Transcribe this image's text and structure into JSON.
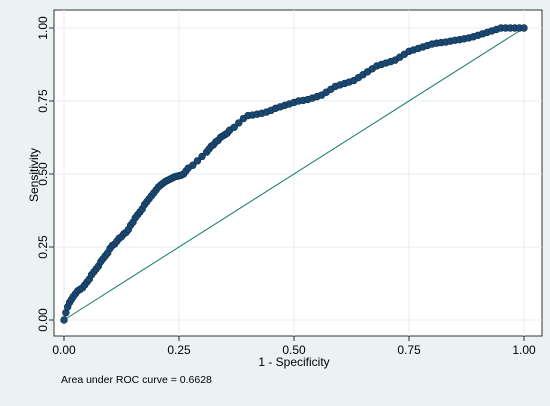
{
  "chart_data": {
    "type": "scatter",
    "title": "",
    "xlabel": "1 - Specificity",
    "ylabel": "Sensitivity",
    "xlim": [
      0,
      1
    ],
    "ylim": [
      0,
      1
    ],
    "xticks": [
      "0.00",
      "0.25",
      "0.50",
      "0.75",
      "1.00"
    ],
    "yticks": [
      "0.00",
      "0.25",
      "0.50",
      "0.75",
      "1.00"
    ],
    "grid": true,
    "note": "Area under ROC curve = 0.6628",
    "reference_line": [
      [
        0,
        0
      ],
      [
        1,
        1
      ]
    ],
    "colors": {
      "points": "#1a4870",
      "reference": "#1a7a6e",
      "background": "#eaf2f3"
    },
    "series": [
      {
        "x": [
          0.0,
          0.004,
          0.008,
          0.012,
          0.016,
          0.02,
          0.025,
          0.03,
          0.035,
          0.04,
          0.045,
          0.05,
          0.055,
          0.06,
          0.065,
          0.07,
          0.075,
          0.08,
          0.085,
          0.09,
          0.095,
          0.1,
          0.105,
          0.11,
          0.115,
          0.12,
          0.125,
          0.13,
          0.135,
          0.14,
          0.145,
          0.15,
          0.155,
          0.16,
          0.165,
          0.17,
          0.175,
          0.18,
          0.185,
          0.19,
          0.195,
          0.2,
          0.205,
          0.21,
          0.215,
          0.22,
          0.225,
          0.23,
          0.235,
          0.24,
          0.245,
          0.25,
          0.255,
          0.26,
          0.265,
          0.27,
          0.28,
          0.29,
          0.3,
          0.31,
          0.315,
          0.32,
          0.325,
          0.33,
          0.335,
          0.34,
          0.345,
          0.35,
          0.355,
          0.36,
          0.37,
          0.38,
          0.39,
          0.4,
          0.41,
          0.42,
          0.43,
          0.44,
          0.45,
          0.46,
          0.47,
          0.48,
          0.49,
          0.5,
          0.51,
          0.52,
          0.53,
          0.54,
          0.55,
          0.56,
          0.57,
          0.58,
          0.59,
          0.6,
          0.61,
          0.62,
          0.63,
          0.64,
          0.65,
          0.66,
          0.67,
          0.68,
          0.69,
          0.7,
          0.71,
          0.72,
          0.73,
          0.74,
          0.75,
          0.76,
          0.77,
          0.78,
          0.79,
          0.8,
          0.81,
          0.82,
          0.83,
          0.84,
          0.85,
          0.86,
          0.87,
          0.88,
          0.89,
          0.9,
          0.91,
          0.92,
          0.93,
          0.94,
          0.95,
          0.96,
          0.97,
          0.98,
          0.99,
          1.0
        ],
        "values": [
          0.0,
          0.025,
          0.045,
          0.06,
          0.07,
          0.08,
          0.09,
          0.1,
          0.105,
          0.11,
          0.12,
          0.13,
          0.14,
          0.155,
          0.165,
          0.175,
          0.185,
          0.2,
          0.21,
          0.22,
          0.23,
          0.245,
          0.255,
          0.26,
          0.27,
          0.28,
          0.285,
          0.295,
          0.3,
          0.31,
          0.325,
          0.335,
          0.35,
          0.36,
          0.37,
          0.38,
          0.395,
          0.405,
          0.415,
          0.425,
          0.435,
          0.445,
          0.455,
          0.462,
          0.468,
          0.474,
          0.478,
          0.482,
          0.486,
          0.49,
          0.492,
          0.494,
          0.496,
          0.5,
          0.51,
          0.52,
          0.53,
          0.545,
          0.56,
          0.575,
          0.585,
          0.595,
          0.6,
          0.61,
          0.615,
          0.625,
          0.63,
          0.635,
          0.64,
          0.65,
          0.66,
          0.675,
          0.69,
          0.7,
          0.702,
          0.705,
          0.708,
          0.712,
          0.718,
          0.725,
          0.73,
          0.735,
          0.74,
          0.745,
          0.75,
          0.752,
          0.755,
          0.76,
          0.765,
          0.77,
          0.78,
          0.79,
          0.8,
          0.805,
          0.81,
          0.815,
          0.82,
          0.83,
          0.84,
          0.85,
          0.86,
          0.87,
          0.875,
          0.88,
          0.885,
          0.89,
          0.9,
          0.91,
          0.92,
          0.925,
          0.93,
          0.935,
          0.94,
          0.945,
          0.948,
          0.95,
          0.952,
          0.955,
          0.958,
          0.96,
          0.963,
          0.966,
          0.97,
          0.975,
          0.98,
          0.985,
          0.99,
          0.995,
          1.0,
          1.0,
          1.0,
          1.0,
          1.0,
          1.0
        ]
      }
    ]
  }
}
